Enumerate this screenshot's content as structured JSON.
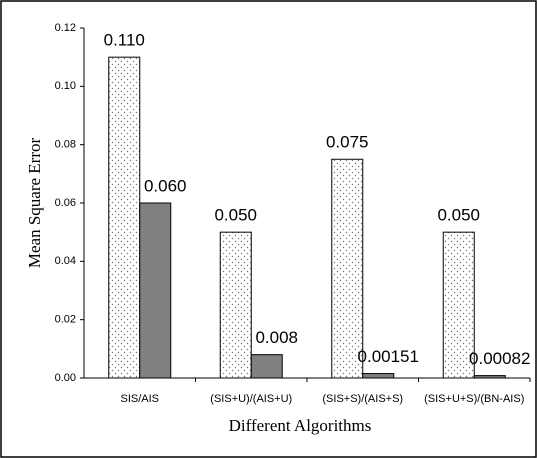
{
  "chart_data": {
    "type": "bar",
    "x_label": "Different Algorithms",
    "y_label": "Mean Square Error",
    "categories": [
      "SIS/AIS",
      "(SIS+U)/(AIS+U)",
      "(SIS+S)/(AIS+S)",
      "(SIS+U+S)/(BN-AIS)"
    ],
    "series": [
      {
        "color": "#ffffff",
        "pattern": "dots",
        "values": [
          0.11,
          0.05,
          0.075,
          0.05
        ],
        "value_labels": [
          "0.110",
          "0.050",
          "0.075",
          "0.050"
        ]
      },
      {
        "color": "#808080",
        "values": [
          0.06,
          0.008,
          0.00151,
          0.00082
        ],
        "value_labels": [
          "0.060",
          "0.008",
          "0.00151",
          "0.00082"
        ]
      }
    ],
    "ylim": [
      0,
      0.12
    ],
    "yticks": [
      {
        "value": 0,
        "label": "0.00"
      },
      0.02,
      0.04,
      0.06,
      0.08,
      {
        "value": 0.1,
        "label": "0.10"
      },
      0.12
    ]
  }
}
